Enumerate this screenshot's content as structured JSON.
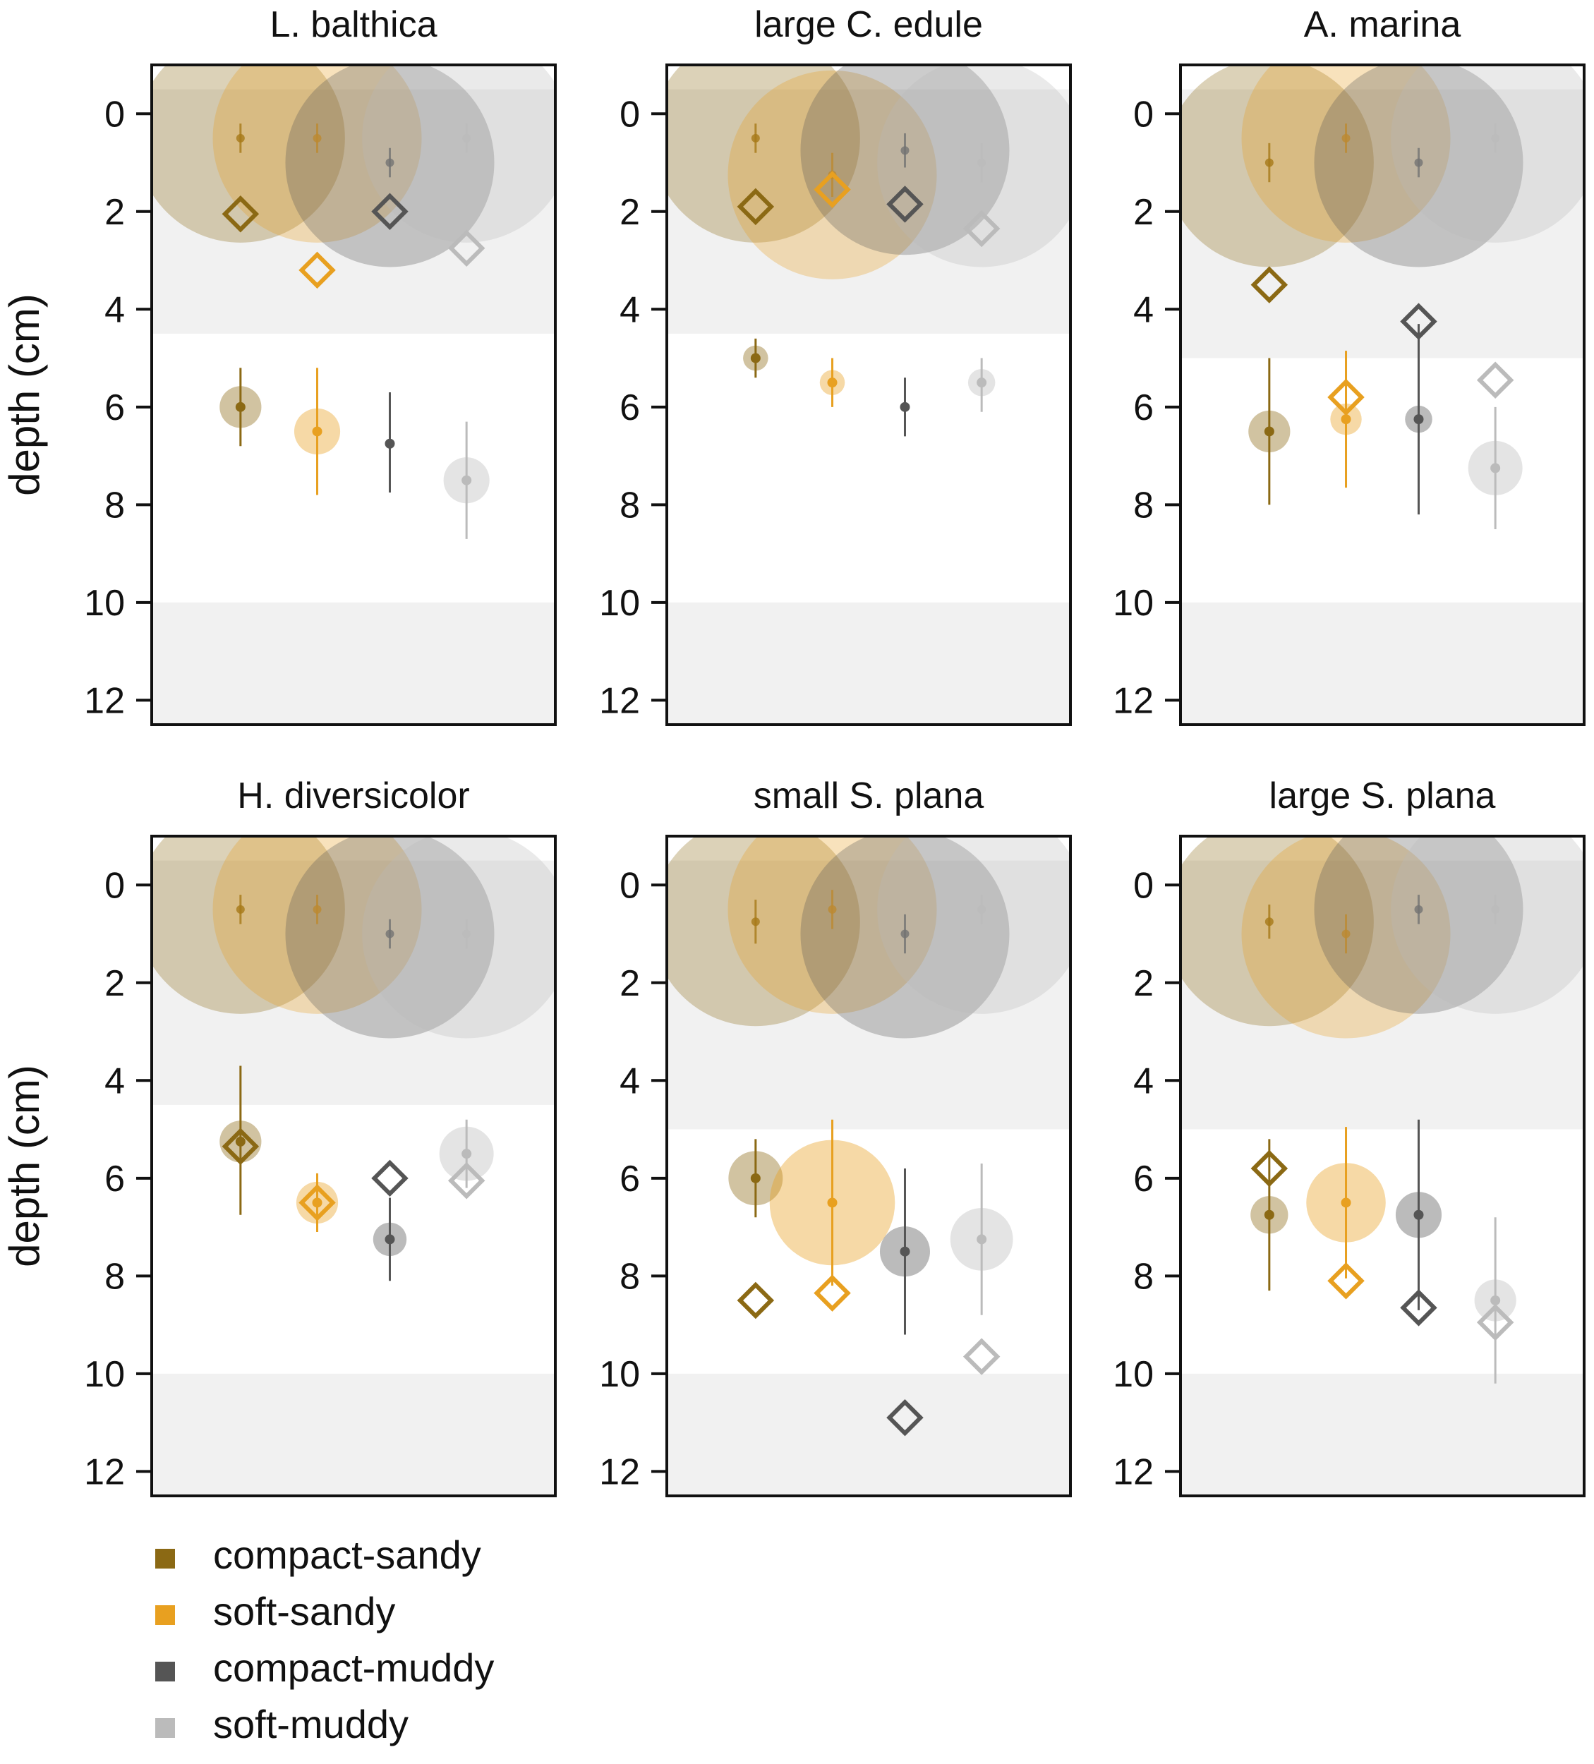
{
  "chart_data": {
    "type": "scatter",
    "description_units": "depth in cm",
    "ylabel": "depth (cm)",
    "y_ticks": [
      0,
      2,
      4,
      6,
      8,
      10,
      12
    ],
    "ylim": [
      -1,
      12.5
    ],
    "groups": [
      "compact-sandy",
      "soft-sandy",
      "compact-muddy",
      "soft-muddy"
    ],
    "colors": {
      "compact-sandy": "#8B6914",
      "soft-sandy": "#E8A020",
      "compact-muddy": "#555555",
      "soft-muddy": "#BBBBBB"
    },
    "legend": [
      {
        "label": "compact-sandy",
        "color": "#8B6914"
      },
      {
        "label": "soft-sandy",
        "color": "#E8A020"
      },
      {
        "label": "compact-muddy",
        "color": "#555555"
      },
      {
        "label": "soft-muddy",
        "color": "#BBBBBB"
      }
    ],
    "panels": [
      {
        "title": "L. balthica",
        "bands": [
          [
            -0.5,
            4.5
          ],
          [
            10,
            12.5
          ]
        ],
        "surface": [
          {
            "group": "compact-sandy",
            "depth": 0.5,
            "err": [
              0.2,
              0.8
            ],
            "size": 0.95
          },
          {
            "group": "soft-sandy",
            "depth": 0.5,
            "err": [
              0.2,
              0.8
            ],
            "size": 0.95
          },
          {
            "group": "compact-muddy",
            "depth": 1.0,
            "err": [
              0.7,
              1.3
            ],
            "size": 0.95
          },
          {
            "group": "soft-muddy",
            "depth": 0.5,
            "err": [
              0.2,
              0.8
            ],
            "size": 0.95
          }
        ],
        "deep": [
          {
            "group": "compact-sandy",
            "depth": 6.0,
            "err": [
              5.2,
              6.8
            ],
            "size": 0.2
          },
          {
            "group": "soft-sandy",
            "depth": 6.5,
            "err": [
              5.2,
              7.8
            ],
            "size": 0.22
          },
          {
            "group": "compact-muddy",
            "depth": 6.75,
            "err": [
              5.7,
              7.75
            ],
            "size": 0
          },
          {
            "group": "soft-muddy",
            "depth": 7.5,
            "err": [
              6.3,
              8.7
            ],
            "size": 0.22
          }
        ],
        "diamonds": [
          {
            "group": "compact-sandy",
            "depth": 2.05
          },
          {
            "group": "soft-sandy",
            "depth": 3.2
          },
          {
            "group": "compact-muddy",
            "depth": 2.0
          },
          {
            "group": "soft-muddy",
            "depth": 2.75
          }
        ]
      },
      {
        "title": "large C. edule",
        "bands": [
          [
            -0.5,
            4.5
          ],
          [
            10,
            12.5
          ]
        ],
        "surface": [
          {
            "group": "compact-sandy",
            "depth": 0.5,
            "err": [
              0.2,
              0.8
            ],
            "size": 0.95
          },
          {
            "group": "soft-sandy",
            "depth": 1.25,
            "err": [
              0.8,
              1.7
            ],
            "size": 0.95
          },
          {
            "group": "compact-muddy",
            "depth": 0.75,
            "err": [
              0.4,
              1.1
            ],
            "size": 0.95
          },
          {
            "group": "soft-muddy",
            "depth": 1.0,
            "err": [
              0.6,
              1.4
            ],
            "size": 0.95
          }
        ],
        "deep": [
          {
            "group": "compact-sandy",
            "depth": 5.0,
            "err": [
              4.6,
              5.4
            ],
            "size": 0.12
          },
          {
            "group": "soft-sandy",
            "depth": 5.5,
            "err": [
              5.0,
              6.0
            ],
            "size": 0.12
          },
          {
            "group": "compact-muddy",
            "depth": 6.0,
            "err": [
              5.4,
              6.6
            ],
            "size": 0
          },
          {
            "group": "soft-muddy",
            "depth": 5.5,
            "err": [
              5.0,
              6.1
            ],
            "size": 0.13
          }
        ],
        "diamonds": [
          {
            "group": "compact-sandy",
            "depth": 1.9
          },
          {
            "group": "soft-sandy",
            "depth": 1.55
          },
          {
            "group": "compact-muddy",
            "depth": 1.85
          },
          {
            "group": "soft-muddy",
            "depth": 2.35
          }
        ]
      },
      {
        "title": "A. marina",
        "bands": [
          [
            -0.5,
            5.0
          ],
          [
            10,
            12.5
          ]
        ],
        "surface": [
          {
            "group": "compact-sandy",
            "depth": 1.0,
            "err": [
              0.6,
              1.4
            ],
            "size": 0.95
          },
          {
            "group": "soft-sandy",
            "depth": 0.5,
            "err": [
              0.2,
              0.8
            ],
            "size": 0.95
          },
          {
            "group": "compact-muddy",
            "depth": 1.0,
            "err": [
              0.7,
              1.3
            ],
            "size": 0.95
          },
          {
            "group": "soft-muddy",
            "depth": 0.5,
            "err": [
              0.2,
              0.8
            ],
            "size": 0.95
          }
        ],
        "deep": [
          {
            "group": "compact-sandy",
            "depth": 6.5,
            "err": [
              5.0,
              8.0
            ],
            "size": 0.2
          },
          {
            "group": "soft-sandy",
            "depth": 6.25,
            "err": [
              4.85,
              7.65
            ],
            "size": 0.15
          },
          {
            "group": "compact-muddy",
            "depth": 6.25,
            "err": [
              4.3,
              8.2
            ],
            "size": 0.13
          },
          {
            "group": "soft-muddy",
            "depth": 7.25,
            "err": [
              6.0,
              8.5
            ],
            "size": 0.26
          }
        ],
        "diamonds": [
          {
            "group": "compact-sandy",
            "depth": 3.5
          },
          {
            "group": "soft-sandy",
            "depth": 5.8
          },
          {
            "group": "compact-muddy",
            "depth": 4.25
          },
          {
            "group": "soft-muddy",
            "depth": 5.45
          }
        ]
      },
      {
        "title": "H. diversicolor",
        "bands": [
          [
            -0.5,
            4.5
          ],
          [
            10,
            12.5
          ]
        ],
        "surface": [
          {
            "group": "compact-sandy",
            "depth": 0.5,
            "err": [
              0.2,
              0.8
            ],
            "size": 0.95
          },
          {
            "group": "soft-sandy",
            "depth": 0.5,
            "err": [
              0.2,
              0.8
            ],
            "size": 0.95
          },
          {
            "group": "compact-muddy",
            "depth": 1.0,
            "err": [
              0.7,
              1.3
            ],
            "size": 0.95
          },
          {
            "group": "soft-muddy",
            "depth": 1.0,
            "err": [
              0.7,
              1.3
            ],
            "size": 0.95
          }
        ],
        "deep": [
          {
            "group": "compact-sandy",
            "depth": 5.25,
            "err": [
              3.7,
              6.75
            ],
            "size": 0.2
          },
          {
            "group": "soft-sandy",
            "depth": 6.5,
            "err": [
              5.9,
              7.1
            ],
            "size": 0.2
          },
          {
            "group": "compact-muddy",
            "depth": 7.25,
            "err": [
              6.4,
              8.1
            ],
            "size": 0.16
          },
          {
            "group": "soft-muddy",
            "depth": 5.5,
            "err": [
              4.8,
              6.2
            ],
            "size": 0.26
          }
        ],
        "diamonds": [
          {
            "group": "compact-sandy",
            "depth": 5.35
          },
          {
            "group": "soft-sandy",
            "depth": 6.5
          },
          {
            "group": "compact-muddy",
            "depth": 6.0
          },
          {
            "group": "soft-muddy",
            "depth": 6.05
          }
        ]
      },
      {
        "title": "small S. plana",
        "bands": [
          [
            -0.5,
            5.0
          ],
          [
            10,
            12.5
          ]
        ],
        "surface": [
          {
            "group": "compact-sandy",
            "depth": 0.75,
            "err": [
              0.3,
              1.2
            ],
            "size": 0.95
          },
          {
            "group": "soft-sandy",
            "depth": 0.5,
            "err": [
              0.1,
              0.9
            ],
            "size": 0.95
          },
          {
            "group": "compact-muddy",
            "depth": 1.0,
            "err": [
              0.6,
              1.4
            ],
            "size": 0.95
          },
          {
            "group": "soft-muddy",
            "depth": 0.5,
            "err": [
              0.2,
              0.8
            ],
            "size": 0.95
          }
        ],
        "deep": [
          {
            "group": "compact-sandy",
            "depth": 6.0,
            "err": [
              5.2,
              6.8
            ],
            "size": 0.26
          },
          {
            "group": "soft-sandy",
            "depth": 6.5,
            "err": [
              4.8,
              8.2
            ],
            "size": 0.6
          },
          {
            "group": "compact-muddy",
            "depth": 7.5,
            "err": [
              5.8,
              9.2
            ],
            "size": 0.24
          },
          {
            "group": "soft-muddy",
            "depth": 7.25,
            "err": [
              5.7,
              8.8
            ],
            "size": 0.3
          }
        ],
        "diamonds": [
          {
            "group": "compact-sandy",
            "depth": 8.5
          },
          {
            "group": "soft-sandy",
            "depth": 8.35
          },
          {
            "group": "compact-muddy",
            "depth": 10.9
          },
          {
            "group": "soft-muddy",
            "depth": 9.65
          }
        ]
      },
      {
        "title": "large S. plana",
        "bands": [
          [
            -0.5,
            5.0
          ],
          [
            10,
            12.5
          ]
        ],
        "surface": [
          {
            "group": "compact-sandy",
            "depth": 0.75,
            "err": [
              0.4,
              1.1
            ],
            "size": 0.95
          },
          {
            "group": "soft-sandy",
            "depth": 1.0,
            "err": [
              0.6,
              1.4
            ],
            "size": 0.95
          },
          {
            "group": "compact-muddy",
            "depth": 0.5,
            "err": [
              0.2,
              0.8
            ],
            "size": 0.95
          },
          {
            "group": "soft-muddy",
            "depth": 0.5,
            "err": [
              0.2,
              0.8
            ],
            "size": 0.95
          }
        ],
        "deep": [
          {
            "group": "compact-sandy",
            "depth": 6.75,
            "err": [
              5.2,
              8.3
            ],
            "size": 0.18
          },
          {
            "group": "soft-sandy",
            "depth": 6.5,
            "err": [
              4.95,
              8.05
            ],
            "size": 0.38
          },
          {
            "group": "compact-muddy",
            "depth": 6.75,
            "err": [
              4.8,
              8.7
            ],
            "size": 0.22
          },
          {
            "group": "soft-muddy",
            "depth": 8.5,
            "err": [
              6.8,
              10.2
            ],
            "size": 0.2
          }
        ],
        "diamonds": [
          {
            "group": "compact-sandy",
            "depth": 5.8
          },
          {
            "group": "soft-sandy",
            "depth": 8.1
          },
          {
            "group": "compact-muddy",
            "depth": 8.65
          },
          {
            "group": "soft-muddy",
            "depth": 8.95
          }
        ]
      }
    ]
  }
}
